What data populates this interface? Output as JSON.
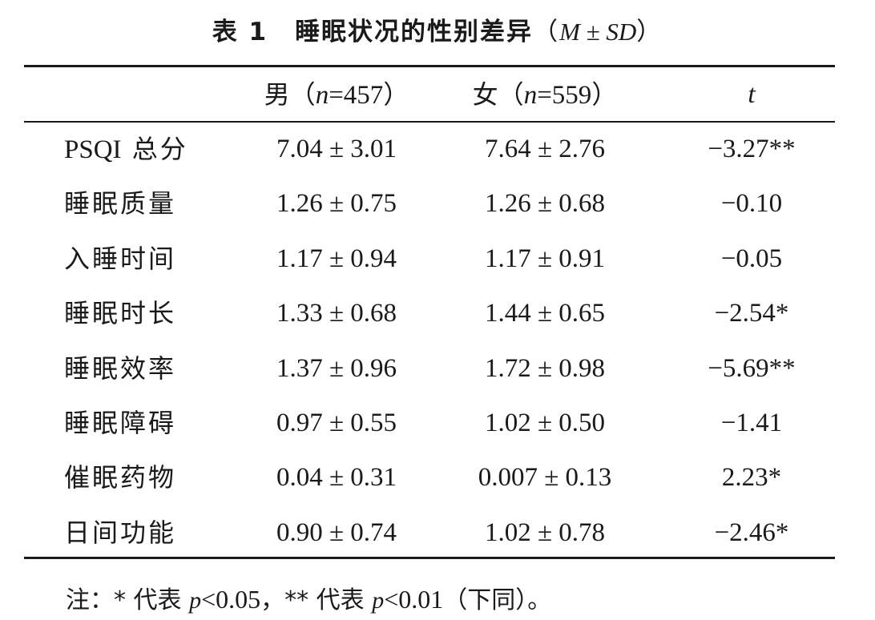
{
  "caption": {
    "number": "表 1",
    "title": "睡眠状况的性别差异",
    "open_paren": "（",
    "stat": "M ± SD",
    "close_paren": "）"
  },
  "table": {
    "headers": {
      "male_label": "男",
      "male_n": "（n=457）",
      "female_label": "女",
      "female_n": "（n=559）",
      "t": "t"
    },
    "rows": [
      {
        "label_latin": "PSQI",
        "label": " 总分",
        "male": "7.04 ± 3.01",
        "female": "7.64 ± 2.76",
        "t": "−3.27**"
      },
      {
        "label_latin": "",
        "label": "睡眠质量",
        "male": "1.26 ± 0.75",
        "female": "1.26 ± 0.68",
        "t": "−0.10"
      },
      {
        "label_latin": "",
        "label": "入睡时间",
        "male": "1.17 ± 0.94",
        "female": "1.17 ± 0.91",
        "t": "−0.05"
      },
      {
        "label_latin": "",
        "label": "睡眠时长",
        "male": "1.33 ± 0.68",
        "female": "1.44 ± 0.65",
        "t": "−2.54*"
      },
      {
        "label_latin": "",
        "label": "睡眠效率",
        "male": "1.37 ± 0.96",
        "female": "1.72 ± 0.98",
        "t": "−5.69**"
      },
      {
        "label_latin": "",
        "label": "睡眠障碍",
        "male": "0.97 ± 0.55",
        "female": "1.02 ± 0.50",
        "t": "−1.41"
      },
      {
        "label_latin": "",
        "label": "催眠药物",
        "male": "0.04 ± 0.31",
        "female": "0.007 ± 0.13",
        "t": "2.23*"
      },
      {
        "label_latin": "",
        "label": "日间功能",
        "male": "0.90 ± 0.74",
        "female": "1.02 ± 0.78",
        "t": "−2.46*"
      }
    ]
  },
  "note": {
    "prefix": "注：* 代表 ",
    "p1": "p",
    "v1": "<0.05",
    "mid": "，** 代表 ",
    "p2": "p",
    "v2": "<0.01",
    "suffix": "（下同）。"
  }
}
